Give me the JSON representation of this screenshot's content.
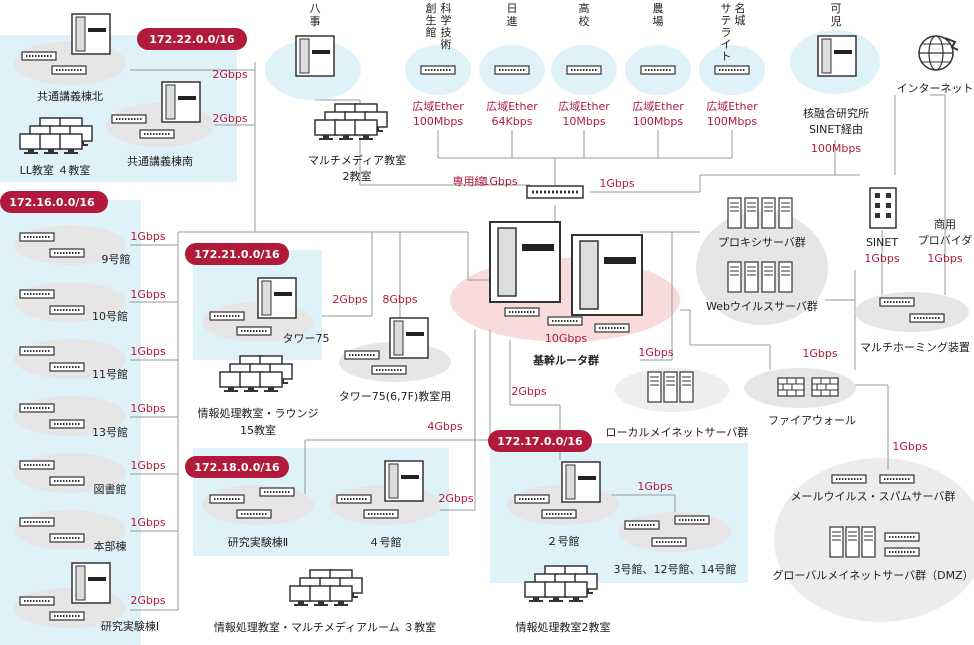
{
  "colors": {
    "accent": "#b11a3b",
    "zone": "#dff2f9",
    "device": "#e6e6e6",
    "router_zone": "#f8dcdc",
    "line": "#999999"
  },
  "subnets": {
    "s22": "172.22.0.0/16",
    "s16": "172.16.0.0/16",
    "s21": "172.21.0.0/16",
    "s18": "172.18.0.0/16",
    "s17": "172.17.0.0/16"
  },
  "top": {
    "hachiji": [
      "八",
      "事"
    ],
    "sosei": [
      "創",
      "生",
      "館"
    ],
    "kagaku": [
      "科",
      "学",
      "技",
      "術"
    ],
    "nisshin": [
      "日",
      "進"
    ],
    "koukou": [
      "高",
      "校"
    ],
    "noujou": [
      "農",
      "場"
    ],
    "meijo": [
      "名",
      "城"
    ],
    "satellite": [
      "サ",
      "テ",
      "ラ",
      "イ",
      "ト"
    ],
    "kani": [
      "可",
      "児"
    ]
  },
  "wan": {
    "label": "広域Ether",
    "s1": "100Mbps",
    "s2": "64Kbps",
    "s3": "10Mbps",
    "s4": "100Mbps",
    "s5": "100Mbps"
  },
  "labels": {
    "kyotsu_kita": "共通講義棟北",
    "ll": "LL教室 ４教室",
    "kyotsu_minami": "共通講義棟南",
    "multimedia": [
      "マルチメディア教室",
      "2教室"
    ],
    "nuclear": [
      "核融合研究所",
      "SINET経由"
    ],
    "nuclear_speed": "100Mbps",
    "internet": "インターネット",
    "senyo": "専用線",
    "core": "基幹ルータ群",
    "core_speed": "10Gbps",
    "proxy": "プロキシサーバ群",
    "web_virus": "Webウイルスサーバ群",
    "sinet": "SINET",
    "commercial": [
      "商用",
      "プロバイダ"
    ],
    "multihome": "マルチホーミング装置",
    "firewall": "ファイアウォール",
    "local_server": "ローカルメイネットサーバ群",
    "mail_server": "メールウイルス・スパムサーバ群",
    "global_server": "グローバルメイネットサーバ群（DMZ）",
    "b9": "9号館",
    "b10": "10号館",
    "b11": "11号館",
    "b13": "13号館",
    "library": "図書館",
    "honbu": "本部棟",
    "kenkyu1": "研究実験棟Ⅰ",
    "tower75": "タワー75",
    "tower75_room": "タワー75(6,7F)教室用",
    "info_lounge": [
      "情報処理教室・ラウンジ",
      "15教室"
    ],
    "kenkyu2": "研究実験棟Ⅱ",
    "b4": "４号館",
    "info_mm": "情報処理教室・マルチメディアルーム ３教室",
    "b2": "２号館",
    "b3_12_14": "3号館、12号館、14号館",
    "info2": "情報処理教室2教室"
  },
  "speeds": {
    "g1": "1Gbps",
    "g2": "2Gbps",
    "g4": "4Gbps",
    "g8": "8Gbps",
    "g10": "10Gbps"
  }
}
